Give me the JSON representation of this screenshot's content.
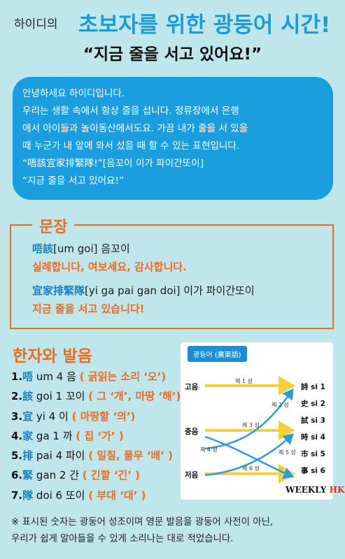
{
  "header": {
    "brand": "하이디의",
    "title": "초보자를 위한 광둥어 시간!",
    "subtitle": "“지금 줄을 서고 있어요!”"
  },
  "intro": {
    "lines": [
      "안녕하세요 하이디입니다.",
      "우리는 생활 속에서 항상 줄을 섭니다.  정류장에서 은행",
      "에서 아이들과 놀이동산에서도요. 가끔 내가 줄을 서 있을",
      "때 누군가 내 앞에 와서 섰을 때 할 수 있는 표현입니다.",
      "“唔該宜家排緊隊!”[음꼬이 이가 파이간또이]",
      "“지금 줄을 서고 있어요!”"
    ]
  },
  "sentence_section": {
    "title": "문장",
    "s1_han": "唔該",
    "s1_rom": "[um goi] 음꼬이",
    "s1_meaning": "실례합니다, 여보세요, 감사합니다.",
    "s2_han": "宜家排緊隊",
    "s2_rom": "[yi ga pai gan doi] 이가 파이간또이",
    "s2_meaning": "지금 줄을 서고 있습니다!"
  },
  "hanzi_section": {
    "title": "한자와 발음",
    "items": [
      {
        "num": "1.",
        "han": "唔",
        "pron": " um 4 음 ",
        "meaning": "( 긁읽는 소리 ‘오’)"
      },
      {
        "num": "2.",
        "han": "該",
        "pron": " goi 1 꼬이 ",
        "meaning": "( 그 ‘개’, 마땅 ‘해’)"
      },
      {
        "num": "3.",
        "han": "宜",
        "pron": " yi 4 이 ",
        "meaning": "( 마땅할 ‘의’)"
      },
      {
        "num": "4.",
        "han": "家",
        "pron": " ga 1 까 ",
        "meaning": "( 집 ‘가’ )"
      },
      {
        "num": "5.",
        "han": "排",
        "pron": " pai 4 파이 ",
        "meaning": "( 밀칠, 풀무 ‘배’ )"
      },
      {
        "num": "6.",
        "han": "緊",
        "pron": " gan 2 간 ",
        "meaning": "( 긴할 ‘긴’ )"
      },
      {
        "num": "7.",
        "han": "隊",
        "pron": " doi 6 또이 ",
        "meaning": "( 부대 ‘대’ )"
      }
    ]
  },
  "tone_diagram": {
    "title": "광둥어 (廣東語)",
    "levels": {
      "high": "고음",
      "mid": "중음",
      "low": "저음"
    },
    "tones": {
      "t1": "제 1 성",
      "t2": "제 2 성",
      "t3": "제 3 성",
      "t4": "제 4 성",
      "t5": "제 5 성",
      "t6": "제 6 성"
    },
    "examples": [
      "詩 si 1",
      "史 si 2",
      "試 si 3",
      "時 si 4",
      "市 si 5",
      "事 si 6"
    ],
    "logo_main": "WEEKLY ",
    "logo_accent": "HK",
    "colors": {
      "line": "#f4d03f",
      "curve": "#2a9ee0",
      "logo_accent": "#d9302c"
    }
  },
  "footnote": {
    "lines": [
      "※ 표시된 숫자는 광둥어 성조이며 영문 발음을 광둥어 사전이 아닌,",
      "우리가 쉽게 알아들을 수 있게 소리나는 대로 적었습니다."
    ]
  },
  "colors": {
    "background": "#bfe6ea",
    "accent_blue": "#1b9bd8",
    "accent_orange": "#ef6a1f"
  }
}
